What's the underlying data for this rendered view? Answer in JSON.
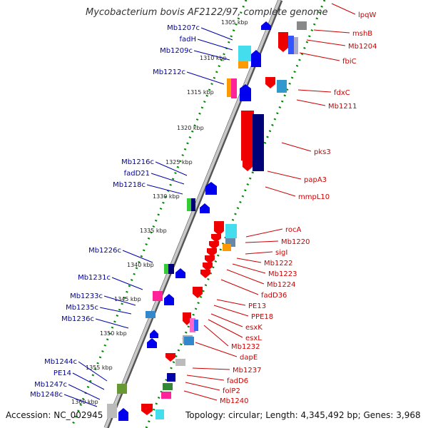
{
  "title": "Mycobacterium bovis AF2122/97, complete genome",
  "accession": "Accession: NC_002945",
  "summary": "Topology: circular; Length: 4,345,492 bp; Genes: 3,968",
  "colors": {
    "backbone": "#888888",
    "forward_gene": "#ee0000",
    "reverse_gene": "#0000ee",
    "tick": "#008800",
    "label_right": "#cc0000",
    "label_left": "#0000aa"
  },
  "scale_labels": [
    "1305 kbp",
    "1310 kbp",
    "1315 kbp",
    "1320 kbp",
    "1325 kbp",
    "1330 kbp",
    "1335 kbp",
    "1340 kbp",
    "1345 kbp",
    "1350 kbp",
    "1355 kbp",
    "1360 kbp"
  ],
  "right_labels": [
    "lpqW",
    "mshB",
    "Mb1204",
    "fbiC",
    "fdxC",
    "Mb1211",
    "pks3",
    "papA3",
    "mmpL10",
    "rocA",
    "Mb1220",
    "sigI",
    "Mb1222",
    "Mb1223",
    "Mb1224",
    "fadD36",
    "PE13",
    "PPE18",
    "esxK",
    "esxL",
    "Mb1232",
    "dapE",
    "Mb1237",
    "fadD6",
    "folP2",
    "Mb1240"
  ],
  "left_labels": [
    "Mb1207c",
    "fadH",
    "Mb1209c",
    "Mb1212c",
    "Mb1216c",
    "fadD21",
    "Mb1218c",
    "Mb1226c",
    "Mb1231c",
    "Mb1233c",
    "Mb1235c",
    "Mb1236c",
    "Mb1244c",
    "PE14",
    "Mb1247c",
    "Mb1248c"
  ]
}
